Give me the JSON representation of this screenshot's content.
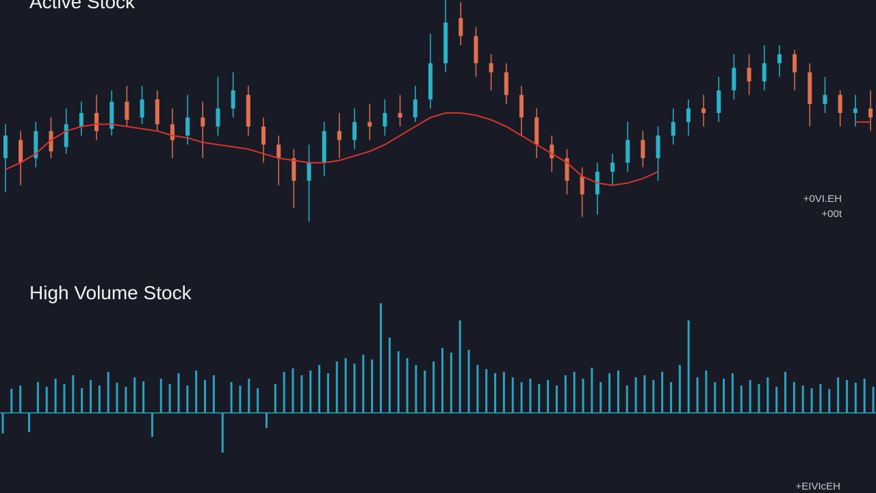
{
  "chart_data": [
    {
      "type": "candlestick",
      "title": "Active Stock",
      "up_color": "#2ab3c9",
      "down_color": "#e2704f",
      "ma_color": "#d9332f",
      "ylim": [
        0,
        100
      ],
      "open": [
        30,
        38,
        30,
        42,
        35,
        44,
        50,
        43,
        55,
        48,
        56,
        45,
        40,
        48,
        44,
        52,
        58,
        44,
        36,
        30,
        20,
        28,
        42,
        38,
        46,
        44,
        50,
        48,
        56,
        72,
        92,
        84,
        72,
        68,
        58,
        48,
        36,
        30,
        22,
        14,
        24,
        28,
        38,
        30,
        40,
        46,
        52,
        50,
        60,
        70,
        64,
        72,
        76,
        68,
        54,
        58,
        50,
        52
      ],
      "close": [
        40,
        28,
        42,
        33,
        45,
        50,
        42,
        55,
        47,
        56,
        45,
        38,
        48,
        44,
        52,
        60,
        44,
        36,
        30,
        20,
        28,
        42,
        38,
        46,
        44,
        50,
        48,
        56,
        72,
        90,
        84,
        72,
        68,
        58,
        48,
        36,
        30,
        20,
        14,
        24,
        28,
        38,
        30,
        40,
        46,
        52,
        50,
        60,
        70,
        64,
        72,
        76,
        68,
        54,
        58,
        50,
        52,
        48
      ],
      "high": [
        45,
        42,
        46,
        48,
        52,
        55,
        58,
        60,
        62,
        62,
        60,
        52,
        58,
        55,
        66,
        68,
        62,
        48,
        40,
        34,
        36,
        46,
        50,
        52,
        54,
        56,
        58,
        62,
        85,
        100,
        99,
        88,
        76,
        72,
        62,
        52,
        40,
        34,
        26,
        28,
        32,
        46,
        42,
        44,
        52,
        56,
        58,
        66,
        76,
        76,
        80,
        80,
        78,
        72,
        66,
        60,
        58,
        60
      ],
      "low": [
        15,
        18,
        26,
        30,
        32,
        40,
        38,
        40,
        44,
        45,
        42,
        30,
        36,
        30,
        40,
        48,
        40,
        28,
        18,
        8,
        2,
        22,
        30,
        34,
        38,
        40,
        44,
        46,
        52,
        68,
        80,
        66,
        60,
        54,
        40,
        30,
        24,
        14,
        4,
        5,
        18,
        24,
        26,
        20,
        36,
        40,
        44,
        46,
        56,
        58,
        60,
        66,
        60,
        44,
        50,
        44,
        44,
        42
      ],
      "ma": [
        25,
        28,
        32,
        38,
        42,
        44,
        45,
        45,
        44,
        43,
        42,
        40,
        39,
        37,
        36,
        35,
        34,
        32,
        30,
        29,
        28,
        28,
        29,
        31,
        33,
        36,
        40,
        44,
        48,
        50,
        50,
        49,
        47,
        44,
        40,
        36,
        32,
        28,
        22,
        19,
        18,
        19,
        21,
        24,
        null,
        null,
        null,
        null,
        null,
        null,
        null,
        null,
        null,
        null,
        null,
        null,
        46,
        46
      ],
      "annotations": [
        "+0VI.EH",
        "+00t"
      ]
    },
    {
      "type": "volume",
      "title": "High Volume Stock",
      "color": "#2aa3bf",
      "ylim": [
        -60,
        160
      ],
      "values": [
        -30,
        35,
        40,
        -28,
        45,
        38,
        50,
        42,
        55,
        36,
        48,
        40,
        60,
        44,
        38,
        52,
        46,
        -35,
        50,
        42,
        58,
        40,
        62,
        48,
        55,
        -58,
        45,
        40,
        50,
        36,
        -22,
        42,
        60,
        65,
        55,
        62,
        70,
        58,
        75,
        80,
        72,
        85,
        78,
        160,
        110,
        90,
        80,
        70,
        62,
        75,
        95,
        88,
        135,
        92,
        70,
        64,
        58,
        60,
        52,
        45,
        50,
        42,
        48,
        40,
        55,
        60,
        50,
        66,
        45,
        58,
        62,
        40,
        52,
        55,
        48,
        60,
        45,
        70,
        135,
        52,
        62,
        45,
        50,
        58,
        40,
        48,
        42,
        52,
        38,
        60,
        45,
        40,
        36,
        42,
        35,
        52,
        48,
        44,
        50,
        38
      ],
      "annotations": [
        "+EIVIcEH"
      ]
    }
  ]
}
